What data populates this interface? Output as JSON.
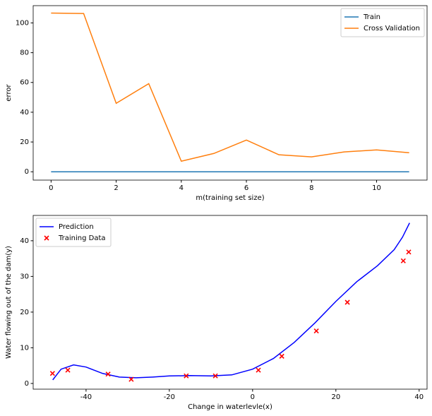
{
  "chart_data": [
    {
      "type": "line",
      "xlabel": "m(training set size)",
      "ylabel": "error",
      "xlim": [
        -0.55,
        11.55
      ],
      "ylim": [
        -5.6,
        111.6
      ],
      "xticks": [
        0,
        2,
        4,
        6,
        8,
        10
      ],
      "yticks": [
        0,
        20,
        40,
        60,
        80,
        100
      ],
      "legend": "upper right",
      "x": [
        0,
        1,
        2,
        3,
        4,
        5,
        6,
        7,
        8,
        9,
        10,
        11
      ],
      "series": [
        {
          "name": "Train",
          "type": "line",
          "color": "#1f77b4",
          "values": [
            0,
            0,
            0,
            0,
            0,
            0,
            0,
            0,
            0,
            0,
            0,
            0
          ]
        },
        {
          "name": "Cross Validation",
          "type": "line",
          "color": "#ff7f0e",
          "values": [
            106.6,
            106.3,
            46,
            59.2,
            7.1,
            12.3,
            21.3,
            11.4,
            10,
            13.3,
            14.7,
            12.8
          ]
        }
      ]
    },
    {
      "type": "combo",
      "xlabel": "Change in waterlevle(x)",
      "ylabel": "Water flowing out of the dam(y)",
      "xlim": [
        -52.7,
        41.9
      ],
      "ylim": [
        -1.6,
        47.1
      ],
      "xticks": [
        -40,
        -20,
        0,
        20,
        40
      ],
      "yticks": [
        0,
        10,
        20,
        30,
        40
      ],
      "legend": "upper left",
      "series": [
        {
          "name": "Prediction",
          "type": "line",
          "color": "#0000ff",
          "x": [
            -48,
            -46,
            -43,
            -40,
            -36,
            -32,
            -28,
            -24,
            -20,
            -15,
            -10,
            -5,
            0,
            5,
            10,
            15,
            20,
            25,
            30,
            34,
            36,
            37.7
          ],
          "values": [
            1.0,
            4,
            5.2,
            4.6,
            2.8,
            1.8,
            1.6,
            1.8,
            2.1,
            2.2,
            2.1,
            2.4,
            4,
            7,
            11.5,
            17,
            23,
            28.5,
            33,
            37.5,
            41,
            45
          ]
        },
        {
          "name": "Training Data",
          "type": "scatter",
          "color": "#ff0000",
          "x": [
            -15.94,
            -29.15,
            36.19,
            37.49,
            -48.06,
            -8.94,
            15.31,
            -34.71,
            1.39,
            -44.38,
            7.01,
            22.76
          ],
          "values": [
            2.13,
            1.17,
            34.36,
            36.84,
            2.81,
            2.12,
            14.71,
            2.61,
            3.74,
            3.73,
            7.63,
            22.75
          ]
        }
      ]
    }
  ]
}
